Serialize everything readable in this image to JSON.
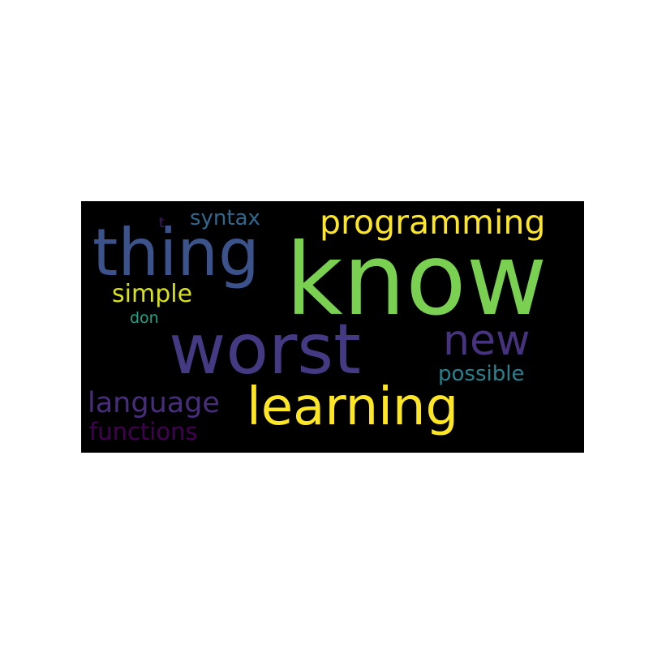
{
  "background_color": "#ffffff",
  "panel_color": "#000000",
  "words": [
    {
      "key": "know",
      "text": "know",
      "color": "#7ad151"
    },
    {
      "key": "worst",
      "text": "worst",
      "color": "#443983"
    },
    {
      "key": "thing",
      "text": "thing",
      "color": "#3b528b"
    },
    {
      "key": "learning",
      "text": "learning",
      "color": "#fde725"
    },
    {
      "key": "programming",
      "text": "programming",
      "color": "#fde725"
    },
    {
      "key": "new",
      "text": "new",
      "color": "#46327e"
    },
    {
      "key": "language",
      "text": "language",
      "color": "#472d7b"
    },
    {
      "key": "simple",
      "text": "simple",
      "color": "#d8e219"
    },
    {
      "key": "functions",
      "text": "functions",
      "color": "#440154"
    },
    {
      "key": "possible",
      "text": "possible",
      "color": "#26828e"
    },
    {
      "key": "syntax",
      "text": "syntax",
      "color": "#31688e"
    },
    {
      "key": "don",
      "text": "don",
      "color": "#20a486"
    },
    {
      "key": "t",
      "text": "t",
      "color": "#48186a"
    }
  ]
}
